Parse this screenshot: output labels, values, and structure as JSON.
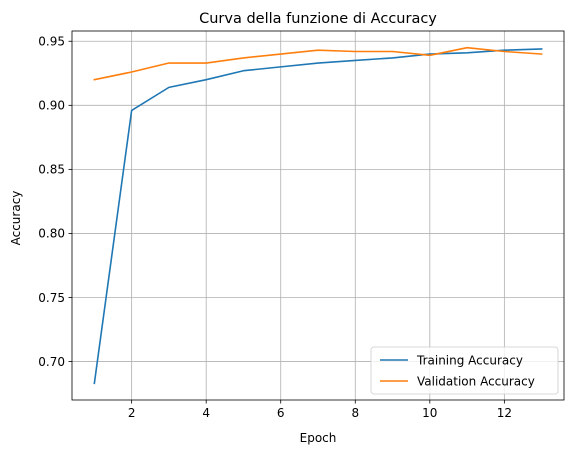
{
  "chart_data": {
    "type": "line",
    "title": "Curva della funzione di Accuracy",
    "xlabel": "Epoch",
    "ylabel": "Accuracy",
    "xlim": [
      0.4,
      13.6
    ],
    "ylim": [
      0.67,
      0.958
    ],
    "xticks": [
      2,
      4,
      6,
      8,
      10,
      12
    ],
    "xtick_labels": [
      "2",
      "4",
      "6",
      "8",
      "10",
      "12"
    ],
    "yticks": [
      0.7,
      0.75,
      0.8,
      0.85,
      0.9,
      0.95
    ],
    "ytick_labels": [
      "0.70",
      "0.75",
      "0.80",
      "0.85",
      "0.90",
      "0.95"
    ],
    "grid": true,
    "legend_position": "lower-right",
    "x": [
      1,
      2,
      3,
      4,
      5,
      6,
      7,
      8,
      9,
      10,
      11,
      12,
      13
    ],
    "series": [
      {
        "name": "Training Accuracy",
        "color": "#1f77b4",
        "values": [
          0.683,
          0.896,
          0.914,
          0.92,
          0.927,
          0.93,
          0.933,
          0.935,
          0.937,
          0.94,
          0.941,
          0.943,
          0.944
        ]
      },
      {
        "name": "Validation Accuracy",
        "color": "#ff7f0e",
        "values": [
          0.92,
          0.926,
          0.933,
          0.933,
          0.937,
          0.94,
          0.943,
          0.942,
          0.942,
          0.939,
          0.945,
          0.942,
          0.94
        ]
      }
    ]
  }
}
